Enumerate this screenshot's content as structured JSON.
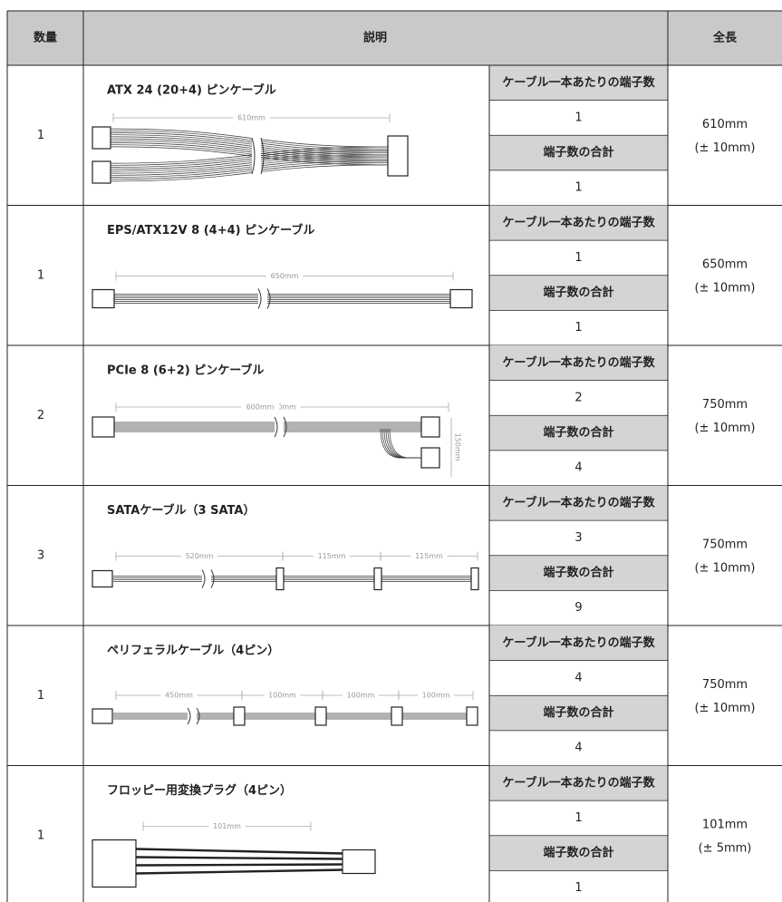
{
  "header": {
    "qty": "数量",
    "description": "説明",
    "length": "全長"
  },
  "table": {
    "rows": [
      {
        "qty": "1",
        "name": "ATX  24 (20+4) ピンケーブル",
        "dims": [
          "610mm"
        ],
        "per_cable_label": "ケーブル一本あたりの端子数",
        "per_cable": "1",
        "total_label": "端子数の合計",
        "total": "1",
        "length": "610mm",
        "tolerance": "(± 10mm)"
      },
      {
        "qty": "1",
        "name": "EPS/ATX12V 8 (4+4) ピンケーブル",
        "dims": [
          "650mm"
        ],
        "per_cable_label": "ケーブル一本あたりの端子数",
        "per_cable": "1",
        "total_label": "端子数の合計",
        "total": "1",
        "length": "650mm",
        "tolerance": "(± 10mm)"
      },
      {
        "qty": "2",
        "name": "PCIe 8 (6+2) ピンケーブル",
        "dims": [
          "600mm",
          "150mm"
        ],
        "per_cable_label": "ケーブル一本あたりの端子数",
        "per_cable": "2",
        "total_label": "端子数の合計",
        "total": "4",
        "length": "750mm",
        "tolerance": "(± 10mm)"
      },
      {
        "qty": "3",
        "name": "SATAケーブル（3 SATA）",
        "dims": [
          "520mm",
          "115mm",
          "115mm"
        ],
        "per_cable_label": "ケーブル一本あたりの端子数",
        "per_cable": "3",
        "total_label": "端子数の合計",
        "total": "9",
        "length": "750mm",
        "tolerance": "(± 10mm)"
      },
      {
        "qty": "1",
        "name": "ペリフェラルケーブル（4ピン）",
        "dims": [
          "450mm",
          "100mm",
          "100mm",
          "100mm"
        ],
        "per_cable_label": "ケーブル一本あたりの端子数",
        "per_cable": "4",
        "total_label": "端子数の合計",
        "total": "4",
        "length": "750mm",
        "tolerance": "(± 10mm)"
      },
      {
        "qty": "1",
        "name": "フロッピー用変換プラグ（4ピン）",
        "dims": [
          "101mm"
        ],
        "per_cable_label": "ケーブル一本あたりの端子数",
        "per_cable": "1",
        "total_label": "端子数の合計",
        "total": "1",
        "length": "101mm",
        "tolerance": "(± 5mm)"
      }
    ]
  }
}
